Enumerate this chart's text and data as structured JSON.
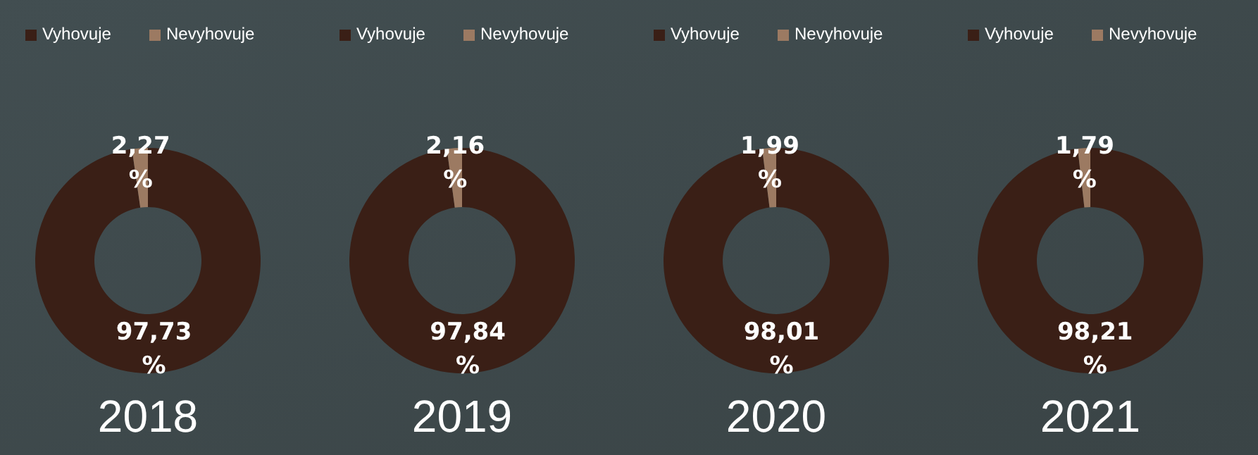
{
  "chart_data": [
    {
      "type": "donut",
      "title": "2018",
      "categories": [
        "Vyhovuje",
        "Nevyhovuje"
      ],
      "values": [
        97.73,
        2.27
      ],
      "colors": [
        "#3a1f16",
        "#9c7a62"
      ],
      "value_labels": [
        "97,73 %",
        "2,27 %"
      ],
      "legend": "top left"
    },
    {
      "type": "donut",
      "title": "2019",
      "categories": [
        "Vyhovuje",
        "Nevyhovuje"
      ],
      "values": [
        97.84,
        2.16
      ],
      "colors": [
        "#3a1f16",
        "#9c7a62"
      ],
      "value_labels": [
        "97,84 %",
        "2,16 %"
      ],
      "legend": "top left"
    },
    {
      "type": "donut",
      "title": "2020",
      "categories": [
        "Vyhovuje",
        "Nevyhovuje"
      ],
      "values": [
        98.01,
        1.99
      ],
      "colors": [
        "#3a1f16",
        "#9c7a62"
      ],
      "value_labels": [
        "98,01 %",
        "1,99 %"
      ],
      "legend": "top left"
    },
    {
      "type": "donut",
      "title": "2021",
      "categories": [
        "Vyhovuje",
        "Nevyhovuje"
      ],
      "values": [
        98.21,
        1.79
      ],
      "colors": [
        "#3a1f16",
        "#9c7a62"
      ],
      "value_labels": [
        "98,21 %",
        "1,79 %"
      ],
      "legend": "top left"
    }
  ]
}
